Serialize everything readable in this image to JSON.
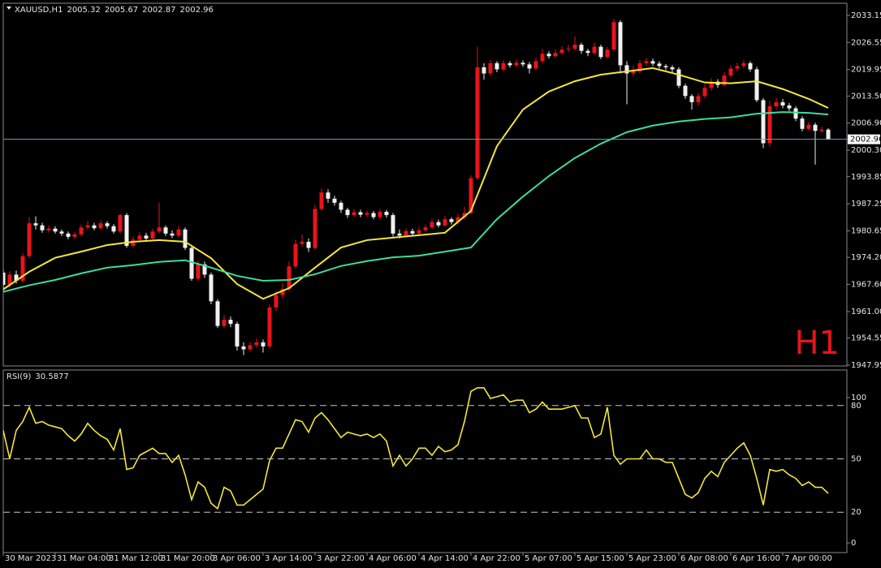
{
  "chart_data": {
    "type": "candlestick",
    "symbol": "XAUUSD,H1",
    "timeframe_label": "H1",
    "categories": [
      "30 Mar 2023",
      null,
      null,
      null,
      null,
      null,
      null,
      null,
      "31 Mar 04:00",
      null,
      null,
      null,
      null,
      null,
      null,
      null,
      "31 Mar 12:00",
      null,
      null,
      null,
      null,
      null,
      null,
      null,
      "31 Mar 20:00",
      null,
      null,
      null,
      null,
      null,
      null,
      null,
      "3 Apr 06:00",
      null,
      null,
      null,
      null,
      null,
      null,
      null,
      "3 Apr 14:00",
      null,
      null,
      null,
      null,
      null,
      null,
      null,
      "3 Apr 22:00",
      null,
      null,
      null,
      null,
      null,
      null,
      null,
      "4 Apr 06:00",
      null,
      null,
      null,
      null,
      null,
      null,
      null,
      "4 Apr 14:00",
      null,
      null,
      null,
      null,
      null,
      null,
      null,
      "4 Apr 22:00",
      null,
      null,
      null,
      null,
      null,
      null,
      null,
      "5 Apr 07:00",
      null,
      null,
      null,
      null,
      null,
      null,
      null,
      "5 Apr 15:00",
      null,
      null,
      null,
      null,
      null,
      null,
      null,
      "5 Apr 23:00",
      null,
      null,
      null,
      null,
      null,
      null,
      null,
      "6 Apr 08:00",
      null,
      null,
      null,
      null,
      null,
      null,
      null,
      "6 Apr 16:00",
      null,
      null,
      null,
      null,
      null,
      null,
      null,
      "7 Apr 00:00",
      null,
      null,
      null,
      null,
      null,
      null,
      null
    ],
    "ohlc": [
      [
        1970.5,
        1971.2,
        1966.0,
        1967.5
      ],
      [
        1967.5,
        1970.8,
        1966.8,
        1970.0
      ],
      [
        1970.0,
        1971.0,
        1967.8,
        1968.5
      ],
      [
        1968.5,
        1975.2,
        1968.0,
        1974.5
      ],
      [
        1974.5,
        1984.0,
        1974.0,
        1982.5
      ],
      [
        1982.5,
        1984.2,
        1981.0,
        1982.0
      ],
      [
        1982.0,
        1982.6,
        1980.2,
        1980.8
      ],
      [
        1980.8,
        1982.0,
        1980.3,
        1981.2
      ],
      [
        1981.2,
        1981.8,
        1980.0,
        1980.5
      ],
      [
        1980.5,
        1981.0,
        1979.4,
        1980.0
      ],
      [
        1980.0,
        1980.5,
        1978.6,
        1979.2
      ],
      [
        1979.2,
        1980.4,
        1978.8,
        1979.8
      ],
      [
        1979.8,
        1982.2,
        1979.3,
        1981.5
      ],
      [
        1981.5,
        1983.0,
        1981.0,
        1982.0
      ],
      [
        1982.0,
        1982.6,
        1980.8,
        1981.3
      ],
      [
        1981.3,
        1983.2,
        1980.9,
        1982.5
      ],
      [
        1982.5,
        1983.0,
        1981.2,
        1981.8
      ],
      [
        1981.8,
        1982.3,
        1980.0,
        1980.5
      ],
      [
        1980.5,
        1985.0,
        1980.0,
        1984.5
      ],
      [
        1984.5,
        1985.0,
        1976.5,
        1977.0
      ],
      [
        1977.0,
        1979.3,
        1976.6,
        1978.5
      ],
      [
        1978.5,
        1980.3,
        1978.0,
        1979.5
      ],
      [
        1979.5,
        1980.2,
        1978.2,
        1978.8
      ],
      [
        1978.8,
        1981.2,
        1978.4,
        1980.5
      ],
      [
        1980.5,
        1987.5,
        1980.0,
        1981.5
      ],
      [
        1981.5,
        1982.0,
        1979.4,
        1980.0
      ],
      [
        1980.0,
        1980.8,
        1978.9,
        1979.5
      ],
      [
        1979.5,
        1981.8,
        1979.0,
        1981.0
      ],
      [
        1981.0,
        1981.5,
        1976.0,
        1976.5
      ],
      [
        1976.5,
        1977.0,
        1968.5,
        1969.0
      ],
      [
        1969.0,
        1973.5,
        1968.5,
        1972.5
      ],
      [
        1972.5,
        1973.2,
        1969.2,
        1970.0
      ],
      [
        1970.0,
        1970.5,
        1962.8,
        1963.5
      ],
      [
        1963.5,
        1964.0,
        1957.0,
        1957.5
      ],
      [
        1957.5,
        1960.2,
        1957.0,
        1959.0
      ],
      [
        1959.0,
        1959.8,
        1957.2,
        1958.0
      ],
      [
        1958.0,
        1958.5,
        1951.5,
        1952.5
      ],
      [
        1952.5,
        1953.5,
        1950.4,
        1951.8
      ],
      [
        1951.8,
        1953.6,
        1951.2,
        1952.8
      ],
      [
        1952.8,
        1954.5,
        1952.2,
        1953.5
      ],
      [
        1953.5,
        1954.2,
        1951.0,
        1952.5
      ],
      [
        1952.5,
        1962.8,
        1952.0,
        1962.0
      ],
      [
        1962.0,
        1966.0,
        1961.2,
        1965.0
      ],
      [
        1965.0,
        1968.0,
        1964.2,
        1966.5
      ],
      [
        1966.5,
        1973.2,
        1966.0,
        1972.0
      ],
      [
        1972.0,
        1978.5,
        1971.5,
        1977.5
      ],
      [
        1977.5,
        1979.8,
        1976.8,
        1978.0
      ],
      [
        1978.0,
        1978.8,
        1975.5,
        1976.5
      ],
      [
        1976.5,
        1987.0,
        1976.0,
        1986.0
      ],
      [
        1986.0,
        1991.0,
        1985.5,
        1990.0
      ],
      [
        1990.0,
        1990.8,
        1987.5,
        1988.5
      ],
      [
        1988.5,
        1989.2,
        1986.8,
        1987.5
      ],
      [
        1987.5,
        1988.0,
        1985.0,
        1985.8
      ],
      [
        1985.8,
        1986.3,
        1983.8,
        1984.5
      ],
      [
        1984.5,
        1986.0,
        1984.0,
        1985.2
      ],
      [
        1985.2,
        1985.8,
        1984.0,
        1984.6
      ],
      [
        1984.6,
        1985.6,
        1984.0,
        1985.0
      ],
      [
        1985.0,
        1985.5,
        1983.5,
        1984.0
      ],
      [
        1984.0,
        1986.0,
        1983.6,
        1985.3
      ],
      [
        1985.3,
        1985.8,
        1983.9,
        1984.5
      ],
      [
        1984.5,
        1985.0,
        1979.3,
        1980.0
      ],
      [
        1980.0,
        1981.0,
        1978.8,
        1979.5
      ],
      [
        1979.5,
        1981.2,
        1979.0,
        1980.6
      ],
      [
        1980.6,
        1981.2,
        1979.4,
        1980.0
      ],
      [
        1980.0,
        1981.6,
        1979.5,
        1980.8
      ],
      [
        1980.8,
        1982.2,
        1980.3,
        1981.5
      ],
      [
        1981.5,
        1983.6,
        1981.0,
        1982.8
      ],
      [
        1982.8,
        1983.4,
        1981.5,
        1982.0
      ],
      [
        1982.0,
        1984.3,
        1981.6,
        1983.5
      ],
      [
        1983.5,
        1984.0,
        1982.2,
        1982.8
      ],
      [
        1982.8,
        1984.8,
        1982.3,
        1984.0
      ],
      [
        1984.0,
        1986.5,
        1983.5,
        1985.0
      ],
      [
        1985.0,
        1994.2,
        1984.6,
        1993.5
      ],
      [
        1993.5,
        2025.5,
        1993.0,
        2020.5
      ],
      [
        2020.5,
        2021.5,
        2017.5,
        2019.0
      ],
      [
        2019.0,
        2022.3,
        2018.5,
        2021.5
      ],
      [
        2021.5,
        2022.0,
        2019.3,
        2020.0
      ],
      [
        2020.0,
        2022.2,
        2019.5,
        2021.5
      ],
      [
        2021.5,
        2022.0,
        2020.4,
        2021.0
      ],
      [
        2021.0,
        2022.3,
        2020.5,
        2021.6
      ],
      [
        2021.6,
        2022.2,
        2020.6,
        2021.2
      ],
      [
        2021.2,
        2021.8,
        2019.0,
        2020.2
      ],
      [
        2020.2,
        2022.8,
        2019.8,
        2022.0
      ],
      [
        2022.0,
        2025.0,
        2021.5,
        2023.8
      ],
      [
        2023.8,
        2024.4,
        2022.6,
        2023.2
      ],
      [
        2023.2,
        2024.8,
        2022.8,
        2024.0
      ],
      [
        2024.0,
        2025.6,
        2023.5,
        2024.8
      ],
      [
        2024.8,
        2026.0,
        2024.2,
        2025.0
      ],
      [
        2025.0,
        2028.0,
        2024.5,
        2026.0
      ],
      [
        2026.0,
        2026.5,
        2023.8,
        2024.5
      ],
      [
        2024.5,
        2025.0,
        2023.2,
        2024.0
      ],
      [
        2024.0,
        2026.5,
        2023.5,
        2025.5
      ],
      [
        2025.5,
        2026.0,
        2022.5,
        2023.0
      ],
      [
        2023.0,
        2025.5,
        2022.6,
        2024.8
      ],
      [
        2024.8,
        2032.3,
        2024.3,
        2031.5
      ],
      [
        2031.5,
        2032.0,
        2019.0,
        2021.0
      ],
      [
        2021.0,
        2022.0,
        2011.5,
        2019.0
      ],
      [
        2019.0,
        2021.0,
        2018.3,
        2019.5
      ],
      [
        2019.5,
        2022.3,
        2019.0,
        2021.5
      ],
      [
        2021.5,
        2022.8,
        2020.8,
        2022.0
      ],
      [
        2022.0,
        2022.6,
        2020.8,
        2021.4
      ],
      [
        2021.4,
        2022.0,
        2020.2,
        2020.8
      ],
      [
        2020.8,
        2021.3,
        2019.8,
        2020.5
      ],
      [
        2020.5,
        2021.0,
        2019.2,
        2020.0
      ],
      [
        2020.0,
        2020.5,
        2015.4,
        2016.0
      ],
      [
        2016.0,
        2016.5,
        2012.8,
        2013.5
      ],
      [
        2013.5,
        2014.0,
        2010.2,
        2012.0
      ],
      [
        2012.0,
        2014.2,
        2011.2,
        2013.5
      ],
      [
        2013.5,
        2016.3,
        2013.0,
        2015.5
      ],
      [
        2015.5,
        2017.8,
        2014.8,
        2017.0
      ],
      [
        2017.0,
        2017.6,
        2015.5,
        2016.2
      ],
      [
        2016.2,
        2019.3,
        2015.8,
        2018.5
      ],
      [
        2018.5,
        2021.0,
        2018.0,
        2020.2
      ],
      [
        2020.2,
        2021.6,
        2019.5,
        2020.8
      ],
      [
        2020.8,
        2022.3,
        2020.2,
        2021.5
      ],
      [
        2021.5,
        2022.0,
        2019.4,
        2020.0
      ],
      [
        2020.0,
        2020.6,
        2012.0,
        2012.5
      ],
      [
        2012.5,
        2013.0,
        2000.8,
        2002.0
      ],
      [
        2002.0,
        2012.3,
        2001.2,
        2011.0
      ],
      [
        2011.0,
        2013.0,
        2010.3,
        2012.0
      ],
      [
        2012.0,
        2012.8,
        2010.5,
        2011.2
      ],
      [
        2011.2,
        2011.8,
        2009.8,
        2010.5
      ],
      [
        2010.5,
        2011.0,
        2007.4,
        2008.0
      ],
      [
        2008.0,
        2008.6,
        2004.9,
        2005.5
      ],
      [
        2005.5,
        2007.2,
        2005.0,
        2006.5
      ],
      [
        2006.5,
        2007.0,
        1996.8,
        2005.0
      ],
      [
        2005.0,
        2006.0,
        2004.5,
        2005.32
      ],
      [
        2005.32,
        2005.67,
        2002.87,
        2002.96
      ]
    ],
    "bull_color": "#e8141a",
    "bear_color": "#f0f0f0",
    "ylim": [
      1947.75,
      2036.1
    ],
    "yticks": [
      2033.15,
      2026.55,
      2019.95,
      {
        "value": 2013.5,
        "label": "2013.50"
      },
      {
        "value": 2006.9,
        "label": "2006.90"
      },
      {
        "value": 2000.3,
        "label": "2000.30"
      },
      1993.85,
      1987.25,
      1980.65,
      {
        "value": 1974.2,
        "label": "1974.20"
      },
      {
        "value": 1967.6,
        "label": "1967.60"
      },
      {
        "value": 1961,
        "label": "1961.00"
      },
      1954.55,
      1947.95
    ],
    "moving_averages": [
      {
        "color": "#f5e63c",
        "x": [
          0,
          4,
          8,
          12,
          16,
          20,
          24,
          28,
          32,
          36,
          40,
          44,
          48,
          52,
          56,
          60,
          64,
          68,
          72,
          76,
          80,
          84,
          88,
          92,
          96,
          100,
          104,
          108,
          112,
          116,
          120,
          124,
          127
        ],
        "values": [
          1966.4,
          1970.7,
          1974.1,
          1975.6,
          1977.2,
          1978.0,
          1978.4,
          1978.0,
          1974.0,
          1967.7,
          1964.1,
          1966.7,
          1971.7,
          1976.6,
          1978.4,
          1979.0,
          1979.6,
          1980.2,
          1985.5,
          2001.3,
          2010.2,
          2014.6,
          2017.1,
          2018.7,
          2019.5,
          2020.3,
          2018.7,
          2016.8,
          2016.6,
          2017.1,
          2015.2,
          2012.8,
          2010.6
        ]
      },
      {
        "color": "#3ddc9c",
        "x": [
          0,
          4,
          8,
          12,
          16,
          20,
          24,
          28,
          32,
          36,
          40,
          44,
          48,
          52,
          56,
          60,
          64,
          68,
          72,
          76,
          80,
          84,
          88,
          92,
          96,
          100,
          104,
          108,
          112,
          116,
          120,
          124,
          127
        ],
        "values": [
          1965.8,
          1967.4,
          1968.7,
          1970.3,
          1971.7,
          1972.3,
          1973.1,
          1973.5,
          1971.7,
          1969.7,
          1968.5,
          1968.7,
          1970.1,
          1972.1,
          1973.3,
          1974.2,
          1974.6,
          1975.6,
          1976.6,
          1983.5,
          1989.0,
          1994.0,
          1998.4,
          2001.9,
          2004.7,
          2006.3,
          2007.3,
          2007.9,
          2008.3,
          2009.2,
          2009.6,
          2009.4,
          2009.0
        ]
      }
    ],
    "rsi": {
      "title": "RSI(9)",
      "color": "#f5e63c",
      "ylim": [
        0,
        100
      ],
      "yticks": [
        100,
        80,
        50,
        20,
        0
      ],
      "values": [
        66,
        50,
        66,
        71,
        79,
        70,
        71,
        69,
        68,
        67,
        63,
        60,
        64,
        70,
        66,
        63,
        61,
        55,
        67,
        44,
        45,
        52,
        54,
        56,
        53,
        53,
        48,
        52,
        41,
        27,
        37,
        34,
        25,
        22,
        34,
        32,
        24,
        24,
        27,
        30,
        33,
        49,
        56,
        56,
        64,
        72,
        71,
        65,
        73,
        76,
        72,
        67,
        62,
        65,
        64,
        63,
        64,
        62,
        64,
        60,
        46,
        52,
        46,
        50,
        56,
        56,
        52,
        57,
        54,
        55,
        58,
        71,
        88,
        90,
        90,
        84,
        85,
        86,
        82,
        83,
        83,
        76,
        78,
        82,
        78,
        78,
        78,
        79,
        80,
        73,
        73,
        62,
        64,
        79,
        52,
        47,
        50,
        50,
        50,
        55,
        50,
        50,
        48,
        48,
        39,
        30,
        28,
        31,
        39,
        43,
        40,
        48,
        52,
        56,
        59,
        52,
        39,
        24,
        44,
        43,
        44,
        41,
        39,
        35,
        37,
        34,
        34,
        30.5877
      ]
    }
  }
}
